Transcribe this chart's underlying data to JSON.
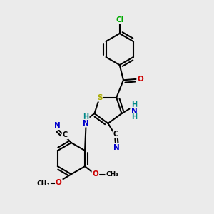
{
  "background_color": "#ebebeb",
  "atom_colors": {
    "C": "#000000",
    "N": "#0000cc",
    "O": "#cc0000",
    "S": "#aaaa00",
    "Cl": "#00aa00",
    "H": "#008888"
  },
  "bond_color": "#000000",
  "bond_width": 1.5
}
